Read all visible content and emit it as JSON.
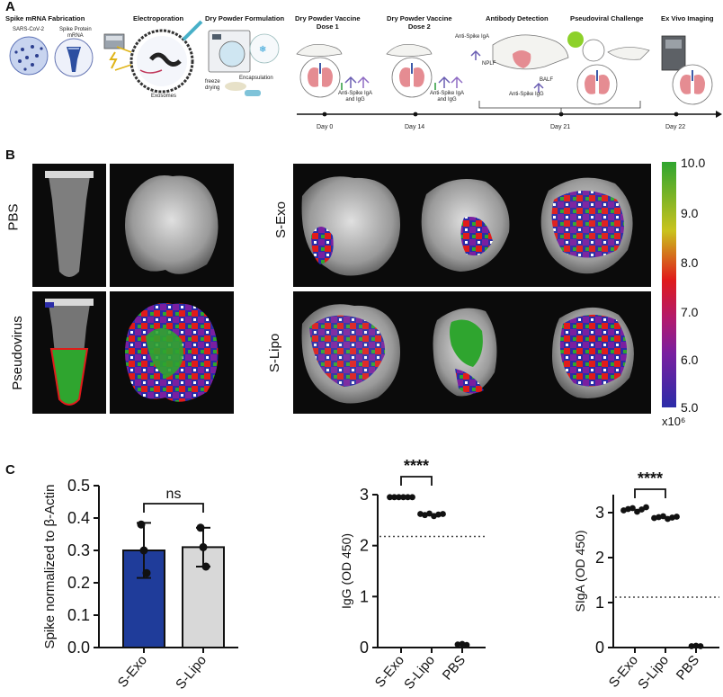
{
  "panels": {
    "a": "A",
    "b": "B",
    "c": "C"
  },
  "workflow": {
    "steps": [
      {
        "title": "Spike mRNA Fabrication"
      },
      {
        "title": "Electroporation"
      },
      {
        "title": "Dry Powder Formulation"
      },
      {
        "title": "Dry Powder Vaccine\nDose 1"
      },
      {
        "title": "Dry Powder Vaccine\nDose 2"
      },
      {
        "title": "Antibody Detection"
      },
      {
        "title": "Pseudoviral Challenge"
      },
      {
        "title": "Ex Vivo Imaging"
      }
    ],
    "labels": {
      "sars": "SARS-CoV-2",
      "spike_mrna": "Spike Protein\nmRNA",
      "exosomes": "Exosomes",
      "freeze": "freeze\ndrying",
      "encap": "Encapsulation",
      "anti_1": "Anti-Spike IgA\nand IgG",
      "anti_2": "Anti-Spike IgA\nand IgG",
      "anti_iga": "Anti-Spike IgA",
      "nplf": "NPLF",
      "balf": "BALF",
      "anti_igg": "Anti-Spike IgG"
    },
    "timeline": [
      "Day 0",
      "Day 14",
      "Day 21",
      "Day 22"
    ]
  },
  "imaging": {
    "rows": {
      "pbs": "PBS",
      "pseudo": "Pseudovirus",
      "sexo": "S-Exo",
      "slipo": "S-Lipo"
    },
    "colorbar": {
      "ticks": [
        "10.0",
        "9.0",
        "8.0",
        "7.0",
        "6.0",
        "5.0"
      ],
      "unit": "x10⁶",
      "colors": [
        "#2fa52f",
        "#c9c31d",
        "#e01b1b",
        "#7a1fa0",
        "#2b2ca8"
      ]
    }
  },
  "chart_data": [
    {
      "type": "bar",
      "categories": [
        "S-Exo",
        "S-Lipo"
      ],
      "values": [
        0.3,
        0.31
      ],
      "errors": [
        0.085,
        0.06
      ],
      "points": [
        [
          0.38,
          0.3,
          0.23
        ],
        [
          0.37,
          0.31,
          0.25
        ]
      ],
      "colors": [
        "#1f3c9a",
        "#d8d8d8"
      ],
      "ylabel": "Spike normalized to β-Actin",
      "ylim": [
        0,
        0.5
      ],
      "yticks": [
        "0.0",
        "0.1",
        "0.2",
        "0.3",
        "0.4",
        "0.5"
      ],
      "significance": "ns"
    },
    {
      "type": "scatter",
      "categories": [
        "S-Exo",
        "S-Lipo",
        "PBS"
      ],
      "points": [
        [
          2.95,
          2.95,
          2.95,
          2.95,
          2.95,
          2.95
        ],
        [
          2.62,
          2.6,
          2.63,
          2.58,
          2.61,
          2.62
        ],
        [
          0.06,
          0.07,
          0.05
        ]
      ],
      "ylabel": "IgG (OD 450)",
      "ylim": [
        0,
        3
      ],
      "yticks": [
        "0",
        "1",
        "2",
        "3"
      ],
      "threshold": 2.18,
      "significance": "****"
    },
    {
      "type": "scatter",
      "categories": [
        "S-Exo",
        "S-Lipo",
        "PBS"
      ],
      "points": [
        [
          3.05,
          3.08,
          3.1,
          3.02,
          3.07,
          3.12
        ],
        [
          2.88,
          2.9,
          2.92,
          2.86,
          2.89,
          2.91
        ],
        [
          0.03,
          0.04,
          0.03
        ]
      ],
      "ylabel": "SIgA (OD 450)",
      "ylim": [
        0,
        3.4
      ],
      "yticks": [
        "0",
        "1",
        "2",
        "3"
      ],
      "threshold": 1.12,
      "significance": "****"
    }
  ]
}
